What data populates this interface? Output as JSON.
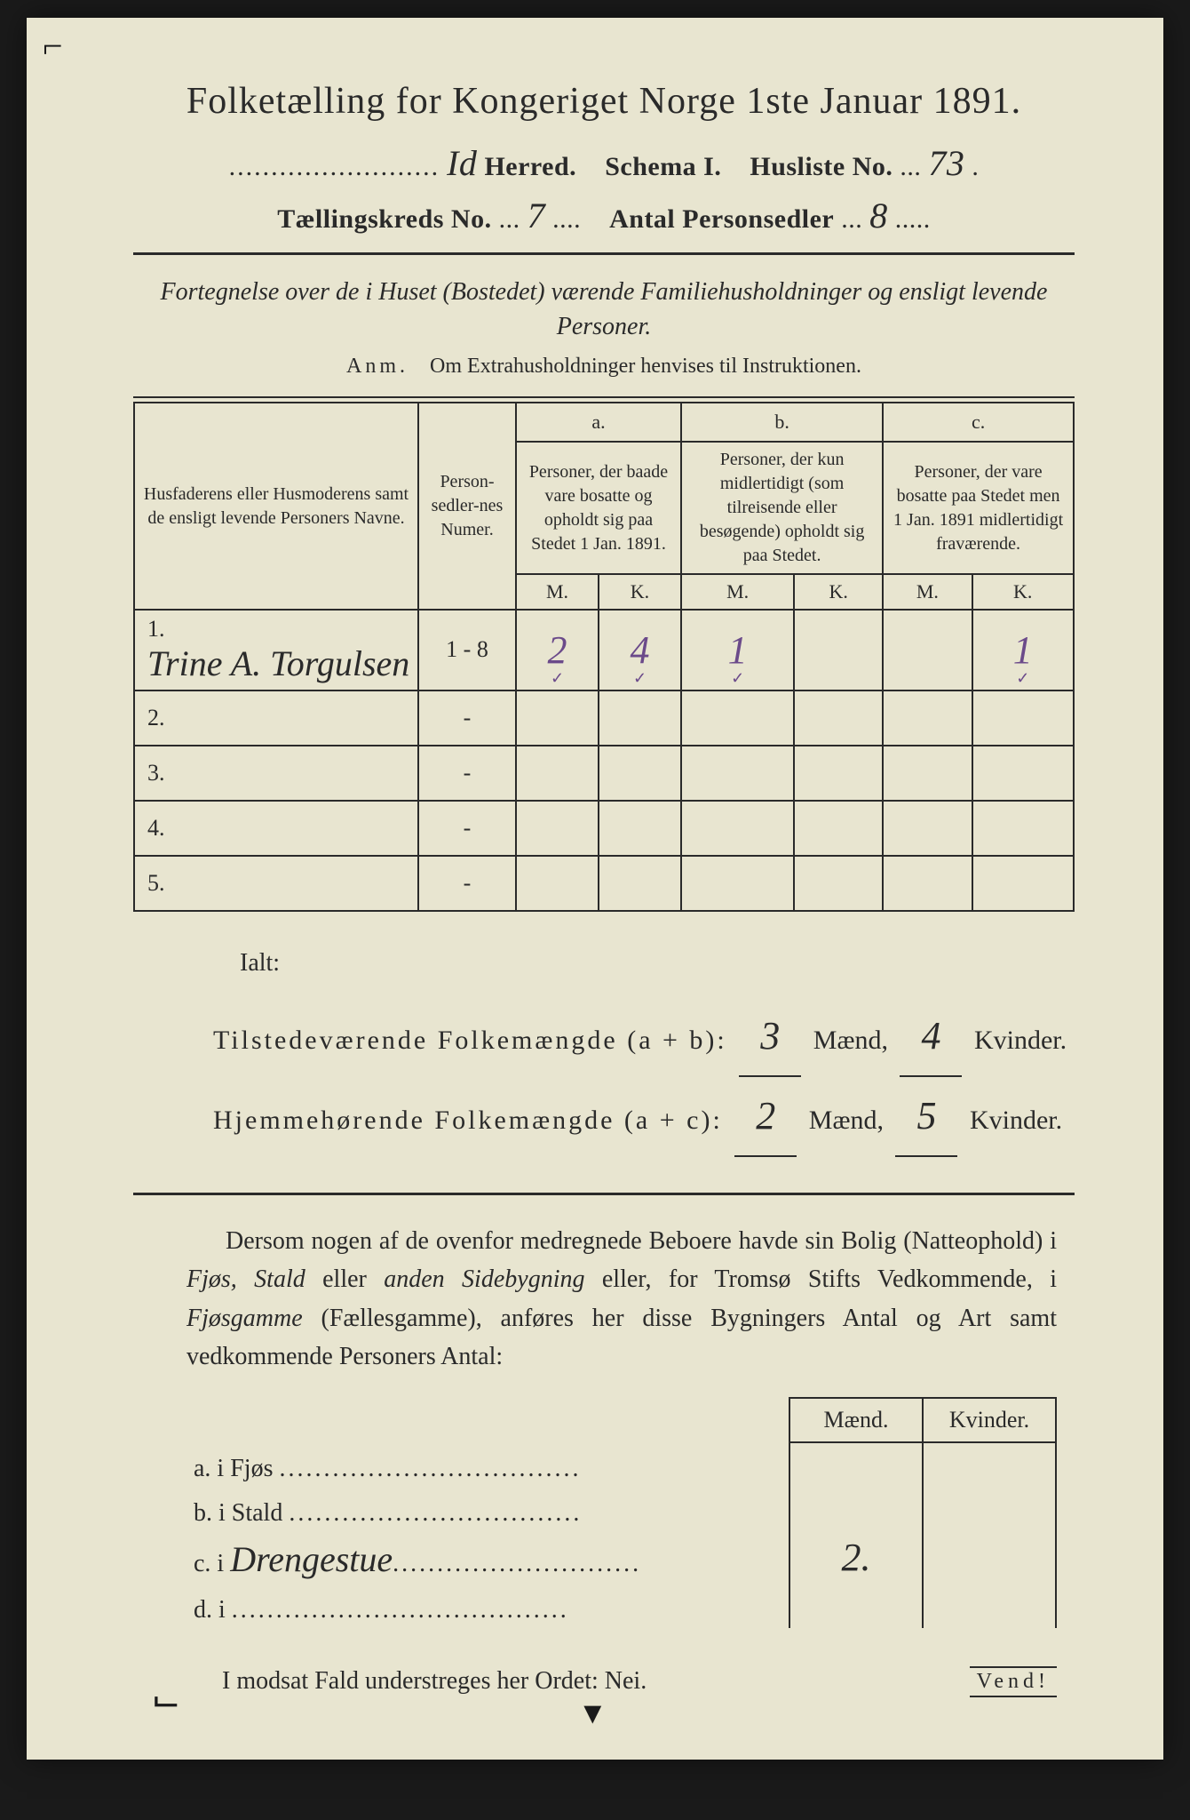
{
  "colors": {
    "page_bg": "#e8e5d0",
    "ink": "#2a2a2a",
    "purple_pencil": "#6b4a8a",
    "outer_bg": "#1a1a1a"
  },
  "title": "Folketælling for Kongeriget Norge 1ste Januar 1891.",
  "header": {
    "herred_hw": "Id",
    "herred_label": "Herred.",
    "schema_label": "Schema I.",
    "husliste_label": "Husliste No.",
    "husliste_hw": "73",
    "kreds_label": "Tællingskreds No.",
    "kreds_hw": "7",
    "antal_label": "Antal Personsedler",
    "antal_hw": "8"
  },
  "sub_italic": "Fortegnelse over de i Huset (Bostedet) værende Familiehusholdninger og ensligt levende Personer.",
  "anm_label": "Anm.",
  "anm_text": "Om Extrahusholdninger henvises til Instruktionen.",
  "table": {
    "col_name_header": "Husfaderens eller Husmoderens samt de ensligt levende Personers Navne.",
    "col_num_header": "Person-sedler-nes Numer.",
    "group_a_label": "a.",
    "group_a_text": "Personer, der baade vare bosatte og opholdt sig paa Stedet 1 Jan. 1891.",
    "group_b_label": "b.",
    "group_b_text": "Personer, der kun midlertidigt (som tilreisende eller besøgende) opholdt sig paa Stedet.",
    "group_c_label": "c.",
    "group_c_text": "Personer, der vare bosatte paa Stedet men 1 Jan. 1891 midlertidigt fraværende.",
    "M": "M.",
    "K": "K.",
    "rows": [
      {
        "n": "1.",
        "name_hw": "Trine A. Torgulsen",
        "num": "1 - 8",
        "aM": "2",
        "aK": "4",
        "bM": "1",
        "bK": "",
        "cM": "",
        "cK": "1"
      },
      {
        "n": "2.",
        "name_hw": "",
        "num": "-",
        "aM": "",
        "aK": "",
        "bM": "",
        "bK": "",
        "cM": "",
        "cK": ""
      },
      {
        "n": "3.",
        "name_hw": "",
        "num": "-",
        "aM": "",
        "aK": "",
        "bM": "",
        "bK": "",
        "cM": "",
        "cK": ""
      },
      {
        "n": "4.",
        "name_hw": "",
        "num": "-",
        "aM": "",
        "aK": "",
        "bM": "",
        "bK": "",
        "cM": "",
        "cK": ""
      },
      {
        "n": "5.",
        "name_hw": "",
        "num": "-",
        "aM": "",
        "aK": "",
        "bM": "",
        "bK": "",
        "cM": "",
        "cK": ""
      }
    ]
  },
  "totals": {
    "ialt": "Ialt:",
    "line1_label": "Tilstedeværende Folkemængde (a + b):",
    "line1_m": "3",
    "line1_k": "4",
    "line2_label": "Hjemmehørende Folkemængde (a + c):",
    "line2_m": "2",
    "line2_k": "5",
    "maend": "Mænd,",
    "kvinder": "Kvinder."
  },
  "paragraph": "Dersom nogen af de ovenfor medregnede Beboere havde sin Bolig (Natteophold) i Fjøs, Stald eller anden Sidebygning eller, for Tromsø Stifts Vedkommende, i Fjøsgamme (Fællesgamme), anføres her disse Bygningers Antal og Art samt vedkommende Personers Antal:",
  "side": {
    "maend": "Mænd.",
    "kvinder": "Kvinder.",
    "rows": [
      {
        "label": "a.  i",
        "type": "Fjøs",
        "hw": "",
        "m": "",
        "k": ""
      },
      {
        "label": "b.  i",
        "type": "Stald",
        "hw": "",
        "m": "",
        "k": ""
      },
      {
        "label": "c.  i",
        "type": "",
        "hw": "Drengestue",
        "m": "2.",
        "k": ""
      },
      {
        "label": "d.  i",
        "type": "",
        "hw": "",
        "m": "",
        "k": ""
      }
    ]
  },
  "nei_line": "I modsat Fald understreges her Ordet: Nei.",
  "vend": "Vend!"
}
